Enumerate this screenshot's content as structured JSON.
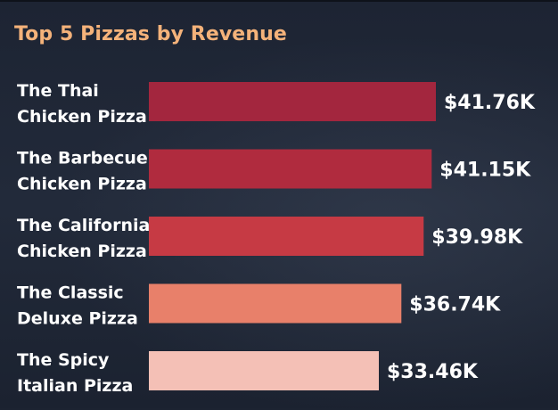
{
  "chart_data": {
    "type": "bar",
    "orientation": "horizontal",
    "title": "Top 5 Pizzas by Revenue",
    "categories": [
      "The Thai Chicken Pizza",
      "The Barbecue Chicken Pizza",
      "The California Chicken Pizza",
      "The Classic Deluxe Pizza",
      "The Spicy Italian Pizza"
    ],
    "category_lines": [
      [
        "The Thai",
        "Chicken Pizza"
      ],
      [
        "The Barbecue",
        "Chicken Pizza"
      ],
      [
        "The California",
        "Chicken Pizza"
      ],
      [
        "The Classic",
        "Deluxe Pizza"
      ],
      [
        "The Spicy",
        "Italian Pizza"
      ]
    ],
    "values": [
      41.76,
      41.15,
      39.98,
      36.74,
      33.46
    ],
    "value_labels": [
      "$41.76K",
      "$41.15K",
      "$39.98K",
      "$36.74K",
      "$33.46K"
    ],
    "unit": "K USD",
    "colors": [
      "#a3263e",
      "#b02b3e",
      "#c63a44",
      "#e8806a",
      "#f4c0b6"
    ],
    "grid": false,
    "legend": "none"
  }
}
